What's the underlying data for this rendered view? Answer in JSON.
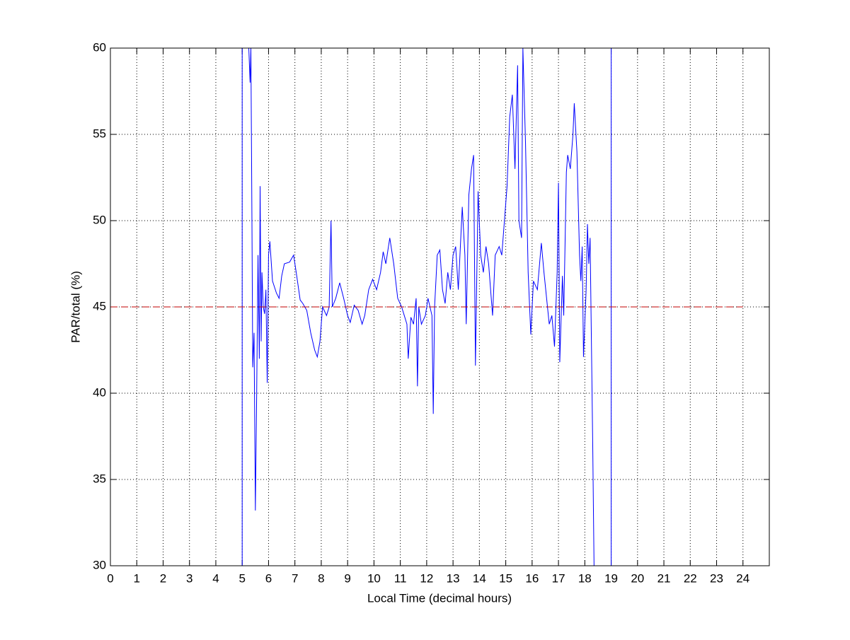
{
  "chart_data": {
    "type": "line",
    "xlabel": "Local Time (decimal hours)",
    "ylabel": "PAR/total (%)",
    "xlim": [
      0,
      25
    ],
    "ylim": [
      30,
      60
    ],
    "xticks": [
      0,
      1,
      2,
      3,
      4,
      5,
      6,
      7,
      8,
      9,
      10,
      11,
      12,
      13,
      14,
      15,
      16,
      17,
      18,
      19,
      20,
      21,
      22,
      23,
      24
    ],
    "yticks": [
      30,
      35,
      40,
      45,
      50,
      55,
      60
    ],
    "grid": true,
    "series": [
      {
        "color": "#0000ff",
        "linestyle": "solid",
        "x": [
          5.0,
          5.0,
          5.25,
          5.3,
          5.33,
          5.37,
          5.4,
          5.45,
          5.5,
          5.55,
          5.6,
          5.65,
          5.68,
          5.72,
          5.75,
          5.8,
          5.85,
          5.9,
          5.95,
          6.0,
          6.05,
          6.15,
          6.3,
          6.4,
          6.5,
          6.6,
          6.8,
          6.95,
          7.05,
          7.2,
          7.3,
          7.45,
          7.6,
          7.75,
          7.85,
          7.95,
          8.05,
          8.2,
          8.3,
          8.37,
          8.42,
          8.55,
          8.7,
          8.85,
          9.0,
          9.1,
          9.25,
          9.4,
          9.55,
          9.65,
          9.8,
          9.95,
          10.1,
          10.25,
          10.35,
          10.45,
          10.6,
          10.75,
          10.9,
          11.05,
          11.15,
          11.25,
          11.3,
          11.4,
          11.5,
          11.6,
          11.65,
          11.7,
          11.8,
          11.95,
          12.05,
          12.2,
          12.25,
          12.3,
          12.4,
          12.5,
          12.6,
          12.7,
          12.8,
          12.9,
          13.0,
          13.1,
          13.2,
          13.35,
          13.45,
          13.5,
          13.6,
          13.7,
          13.78,
          13.85,
          13.95,
          14.05,
          14.15,
          14.25,
          14.35,
          14.45,
          14.5,
          14.6,
          14.75,
          14.85,
          14.95,
          15.05,
          15.15,
          15.25,
          15.35,
          15.45,
          15.5,
          15.6,
          15.65,
          15.75,
          15.85,
          15.95,
          16.05,
          16.2,
          16.35,
          16.45,
          16.55,
          16.65,
          16.75,
          16.85,
          16.95,
          17.0,
          17.05,
          17.15,
          17.2,
          17.3,
          17.35,
          17.45,
          17.55,
          17.6,
          17.7,
          17.8,
          17.85,
          17.9,
          17.95,
          18.05,
          18.1,
          18.15,
          18.2,
          18.3,
          18.35,
          18.7,
          19.0,
          19.0
        ],
        "values": [
          30,
          60,
          60,
          58,
          60,
          50,
          41.5,
          43.5,
          33.2,
          40,
          48,
          42,
          52,
          43,
          47,
          45,
          44.6,
          46,
          40.6,
          48,
          48.8,
          46.5,
          45.8,
          45.5,
          46.8,
          47.5,
          47.6,
          48,
          47,
          45.4,
          45.2,
          44.8,
          43.5,
          42.5,
          42.1,
          43,
          45,
          44.5,
          45,
          50,
          45,
          45.5,
          46.4,
          45.5,
          44.5,
          44.1,
          45.1,
          44.8,
          44,
          44.5,
          46,
          46.6,
          46,
          47,
          48.2,
          47.5,
          49,
          47.5,
          45.5,
          45,
          44.5,
          44,
          42,
          44.4,
          44,
          45.5,
          40.4,
          45,
          44,
          44.5,
          45.5,
          44.5,
          38.8,
          45,
          48,
          48.3,
          46,
          45.2,
          47,
          46,
          48,
          48.5,
          46,
          50.8,
          48,
          44,
          51.5,
          53,
          53.8,
          41.6,
          51.7,
          48,
          47,
          48.5,
          47.5,
          45.5,
          44.5,
          48,
          48.5,
          48,
          50,
          52,
          56,
          57.3,
          53,
          59,
          50,
          49,
          60,
          54.5,
          47,
          43.4,
          46.5,
          46,
          48.7,
          47,
          45.5,
          44,
          44.5,
          42.7,
          47,
          52.2,
          41.8,
          46.8,
          44.5,
          52.8,
          53.8,
          53,
          55,
          56.8,
          54,
          48,
          46.5,
          48.5,
          42.1,
          46,
          49.8,
          47.5,
          49,
          37,
          30,
          null,
          30,
          60
        ]
      },
      {
        "color": "#c00000",
        "linestyle": "dashed",
        "x": [
          0,
          24
        ],
        "values": [
          45,
          45
        ]
      }
    ]
  }
}
